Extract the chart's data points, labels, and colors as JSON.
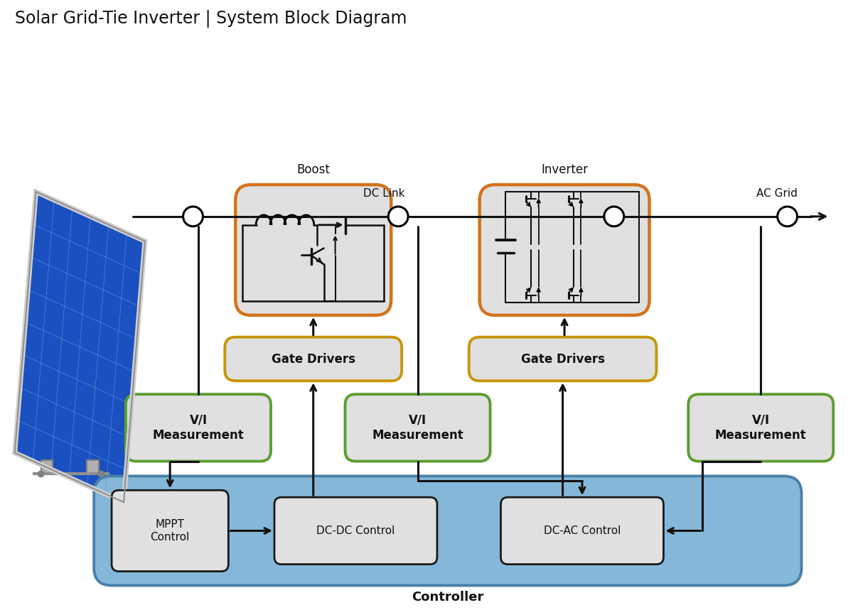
{
  "title": "Solar Grid-Tie Inverter | System Block Diagram",
  "title_fontsize": 17,
  "bg_color": "#ffffff",
  "block_fill": "#e0e0e0",
  "block_edge_green": "#5a9e2f",
  "block_edge_orange": "#d4721a",
  "block_edge_yellow": "#c8960a",
  "controller_fill": "#85b8d8",
  "controller_edge": "#4a80a8",
  "inner_block_fill": "#e0e0e0",
  "inner_block_edge": "#1a1a1a",
  "line_color": "#111111",
  "arrow_color": "#111111",
  "text_color": "#111111",
  "label_boost": "Boost",
  "label_inverter": "Inverter",
  "label_dc_link": "DC Link",
  "label_ac_grid": "AC Grid",
  "label_gate1": "Gate Drivers",
  "label_gate2": "Gate Drivers",
  "label_vi1": "V/I\nMeasurement",
  "label_vi2": "V/I\nMeasurement",
  "label_vi3": "V/I\nMeasurement",
  "label_mppt": "MPPT\nControl",
  "label_dcdc": "DC-DC Control",
  "label_dcac": "DC-AC Control",
  "label_controller": "Controller",
  "font_block": 12,
  "font_label": 11,
  "font_title": 17,
  "panel_dark": "#1040a0",
  "panel_mid": "#1a50c0",
  "panel_light": "#2870e0",
  "panel_grid": "#6090d8",
  "panel_frame": "#d0d0d0"
}
